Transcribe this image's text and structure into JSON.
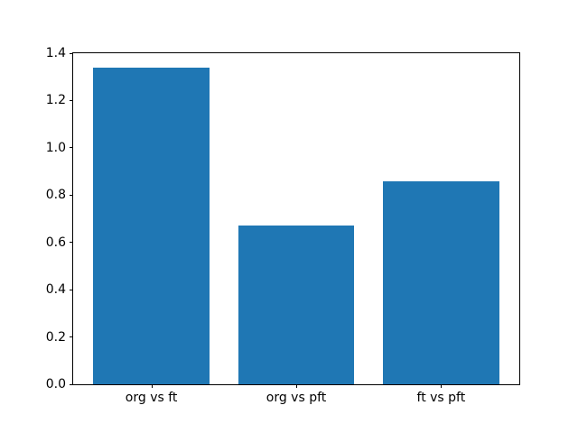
{
  "figure": {
    "background": "#ffffff"
  },
  "chart_data": {
    "type": "bar",
    "categories": [
      "org vs ft",
      "org vs pft",
      "ft vs pft"
    ],
    "values": [
      1.34,
      0.67,
      0.86
    ],
    "title": "",
    "xlabel": "",
    "ylabel": "",
    "ylim": [
      0,
      1.4
    ],
    "xlim": [
      -0.54,
      2.54
    ],
    "bar_width": 0.8,
    "yticks": [
      0.0,
      0.2,
      0.4,
      0.6,
      0.8,
      1.0,
      1.2,
      1.4
    ],
    "ytick_labels": [
      "0.0",
      "0.2",
      "0.4",
      "0.6",
      "0.8",
      "1.0",
      "1.2",
      "1.4"
    ],
    "bar_color": "#1f77b4",
    "axis_color": "#000000",
    "grid": false,
    "legend": null
  }
}
